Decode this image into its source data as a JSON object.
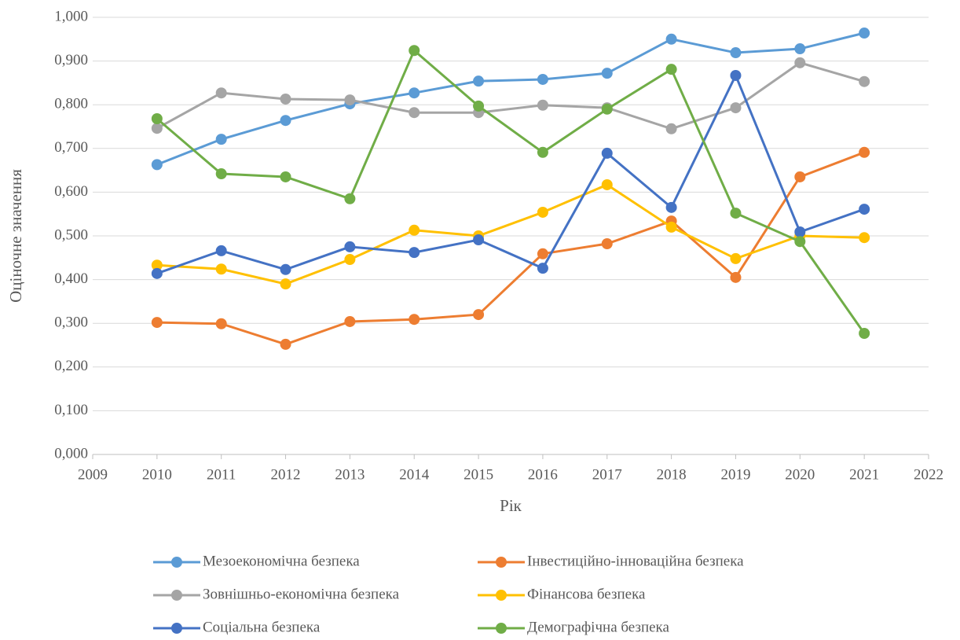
{
  "chart_data": {
    "type": "line",
    "x_label": "Рік",
    "y_label": "Оціночне значення",
    "x": [
      2010,
      2011,
      2012,
      2013,
      2014,
      2015,
      2016,
      2017,
      2018,
      2019,
      2020,
      2021
    ],
    "series": [
      {
        "name": "Мезоекономічна безпека",
        "color": "#5b9bd5",
        "values": [
          0.663,
          0.721,
          0.764,
          0.802,
          0.827,
          0.854,
          0.858,
          0.872,
          0.95,
          0.919,
          0.928,
          0.964
        ]
      },
      {
        "name": "Інвестиційно-інноваційна безпека",
        "color": "#ed7d31",
        "values": [
          0.302,
          0.299,
          0.252,
          0.304,
          0.309,
          0.32,
          0.459,
          0.482,
          0.534,
          0.405,
          0.635,
          0.691
        ]
      },
      {
        "name": "Зовнішньо-економічна безпека",
        "color": "#a5a5a5",
        "values": [
          0.746,
          0.827,
          0.813,
          0.811,
          0.782,
          0.782,
          0.799,
          0.793,
          0.745,
          0.793,
          0.896,
          0.853
        ]
      },
      {
        "name": "Фінансова безпека",
        "color": "#ffc000",
        "values": [
          0.433,
          0.424,
          0.39,
          0.446,
          0.513,
          0.5,
          0.554,
          0.617,
          0.52,
          0.448,
          0.5,
          0.496
        ]
      },
      {
        "name": "Соціальна безпека",
        "color": "#4472c4",
        "values": [
          0.414,
          0.466,
          0.423,
          0.475,
          0.462,
          0.491,
          0.426,
          0.689,
          0.565,
          0.867,
          0.509,
          0.561
        ]
      },
      {
        "name": "Демографічна безпека",
        "color": "#70ad47",
        "values": [
          0.768,
          0.642,
          0.635,
          0.585,
          0.924,
          0.797,
          0.691,
          0.79,
          0.881,
          0.552,
          0.487,
          0.277
        ]
      }
    ],
    "xlim": [
      2009,
      2022
    ],
    "xticks": [
      2009,
      2010,
      2011,
      2012,
      2013,
      2014,
      2015,
      2016,
      2017,
      2018,
      2019,
      2020,
      2021,
      2022
    ],
    "ylim": [
      0,
      1
    ],
    "yticks": [
      {
        "value": 0,
        "label": "0,000"
      },
      {
        "value": 0.1,
        "label": "0,100"
      },
      {
        "value": 0.2,
        "label": "0,200"
      },
      {
        "value": 0.3,
        "label": "0,300"
      },
      {
        "value": 0.4,
        "label": "0,400"
      },
      {
        "value": 0.5,
        "label": "0,500"
      },
      {
        "value": 0.6,
        "label": "0,600"
      },
      {
        "value": 0.7,
        "label": "0,700"
      },
      {
        "value": 0.8,
        "label": "0,800"
      },
      {
        "value": 0.9,
        "label": "0,900"
      },
      {
        "value": 1,
        "label": "1,000"
      }
    ],
    "grid": true,
    "legend": "bottom"
  }
}
